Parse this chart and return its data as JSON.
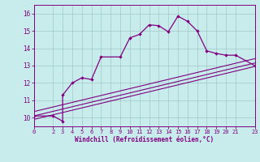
{
  "title": "",
  "xlabel": "Windchill (Refroidissement éolien,°C)",
  "ylabel": "",
  "background_color": "#c8ecec",
  "grid_color": "#a0c8c8",
  "line_color": "#800080",
  "xlim": [
    0,
    23
  ],
  "ylim": [
    9.5,
    16.5
  ],
  "yticks": [
    10,
    11,
    12,
    13,
    14,
    15,
    16
  ],
  "xticks": [
    0,
    2,
    3,
    4,
    5,
    6,
    7,
    8,
    9,
    10,
    11,
    12,
    13,
    14,
    15,
    16,
    17,
    18,
    19,
    20,
    21,
    23
  ],
  "main_x": [
    0,
    2,
    3,
    3,
    4,
    5,
    6,
    7,
    9,
    10,
    11,
    12,
    13,
    14,
    15,
    16,
    17,
    18,
    19,
    20,
    21,
    23
  ],
  "main_y": [
    10.1,
    10.1,
    9.8,
    11.3,
    12.0,
    12.3,
    12.2,
    13.5,
    13.5,
    14.6,
    14.8,
    15.35,
    15.3,
    14.95,
    15.85,
    15.55,
    15.0,
    13.85,
    13.7,
    13.6,
    13.6,
    13.0
  ],
  "line1": {
    "x": [
      0,
      23
    ],
    "y": [
      10.1,
      13.15
    ]
  },
  "line2": {
    "x": [
      0,
      23
    ],
    "y": [
      10.35,
      13.4
    ]
  },
  "line3": {
    "x": [
      0,
      23
    ],
    "y": [
      9.9,
      12.95
    ]
  }
}
